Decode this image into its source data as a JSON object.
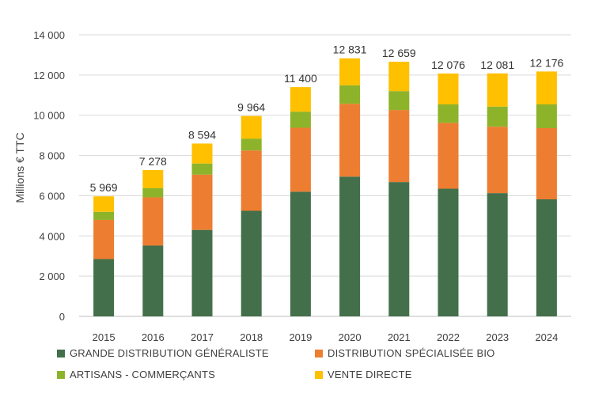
{
  "chart_data": {
    "type": "bar",
    "stacked": true,
    "title": "",
    "xlabel": "",
    "ylabel": "Millions € TTC",
    "ylim": [
      0,
      14000
    ],
    "yticks": [
      0,
      2000,
      4000,
      6000,
      8000,
      10000,
      12000,
      14000
    ],
    "ytick_labels": [
      "0",
      "2 000",
      "4 000",
      "6 000",
      "8 000",
      "10 000",
      "12 000",
      "14 000"
    ],
    "grid": true,
    "categories": [
      "2015",
      "2016",
      "2017",
      "2018",
      "2019",
      "2020",
      "2021",
      "2022",
      "2023",
      "2024"
    ],
    "series": [
      {
        "name": "GRANDE DISTRIBUTION GÉNÉRALISTE",
        "color": "#43704a",
        "values": [
          2850,
          3520,
          4300,
          5250,
          6200,
          6950,
          6680,
          6350,
          6130,
          5820
        ]
      },
      {
        "name": "DISTRIBUTION SPÉCIALISÉE BIO",
        "color": "#ed7d31",
        "values": [
          1950,
          2400,
          2750,
          3000,
          3180,
          3620,
          3580,
          3270,
          3300,
          3540
        ]
      },
      {
        "name": "ARTISANS - COMMERÇANTS",
        "color": "#8db32a",
        "values": [
          400,
          450,
          550,
          580,
          800,
          920,
          940,
          920,
          1000,
          1180
        ]
      },
      {
        "name": "VENTE DIRECTE",
        "color": "#ffc000",
        "values": [
          769,
          908,
          994,
          1134,
          1220,
          1341,
          1459,
          1536,
          1651,
          1636
        ]
      }
    ],
    "totals": [
      5969,
      7278,
      8594,
      9964,
      11400,
      12831,
      12659,
      12076,
      12081,
      12176
    ],
    "total_labels": [
      "5 969",
      "7 278",
      "8 594",
      "9 964",
      "11 400",
      "12 831",
      "12 659",
      "12 076",
      "12 081",
      "12 176"
    ],
    "legend_position": "bottom"
  }
}
